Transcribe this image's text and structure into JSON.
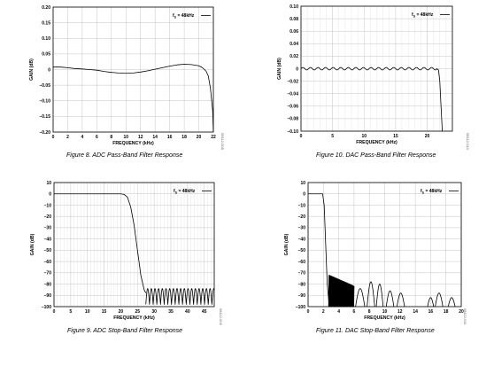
{
  "chart_data": [
    {
      "type": "line",
      "caption": "Figure 8. ADC Pass-Band Filter Response",
      "xlabel": "FREQUENCY (kHz)",
      "ylabel": "GAIN (dB)",
      "annotation": "fS = 48kHz",
      "figure_id": "08112-008",
      "xlim": [
        0,
        22
      ],
      "ylim": [
        -0.2,
        0.2
      ],
      "x_ticks": [
        "0",
        "2",
        "4",
        "6",
        "8",
        "10",
        "12",
        "14",
        "16",
        "18",
        "20",
        "22"
      ],
      "y_ticks": [
        "0.20",
        "0.15",
        "0.10",
        "0.05",
        "0",
        "–0.05",
        "–0.10",
        "–0.15",
        "–0.20"
      ],
      "grid": true,
      "series": [
        {
          "x": [
            0,
            1,
            2,
            3,
            4,
            5,
            6,
            7,
            8,
            9,
            10,
            11,
            12,
            13,
            14,
            15,
            16,
            17,
            18,
            19,
            20,
            20.5,
            21,
            21.3,
            21.6,
            21.9,
            22
          ],
          "y": [
            0.008,
            0.008,
            0.006,
            0.003,
            0.002,
            0.0,
            -0.002,
            -0.006,
            -0.009,
            -0.011,
            -0.012,
            -0.011,
            -0.008,
            -0.004,
            0.001,
            0.006,
            0.011,
            0.015,
            0.017,
            0.016,
            0.012,
            0.006,
            -0.005,
            -0.02,
            -0.06,
            -0.13,
            -0.2
          ]
        }
      ]
    },
    {
      "type": "line",
      "caption": "Figure 10. DAC Pass-Band Filter Response",
      "xlabel": "FREQUENCY (kHz)",
      "ylabel": "GAIN (dB)",
      "annotation": "fS = 48kHz",
      "figure_id": "08112-010",
      "xlim": [
        0,
        24
      ],
      "ylim": [
        -0.1,
        0.1
      ],
      "x_ticks": [
        "0",
        "5",
        "10",
        "15",
        "20"
      ],
      "x_tick_values": [
        0,
        5,
        10,
        15,
        20
      ],
      "y_ticks": [
        "0.10",
        "0.08",
        "0.06",
        "0.04",
        "0.02",
        "0",
        "–0.02",
        "–0.04",
        "–0.06",
        "–0.08",
        "–0.10"
      ],
      "grid": true,
      "ripple": {
        "amplitude_db": 0.002,
        "period_khz": 1.2,
        "until_khz": 21.5
      },
      "rolloff": {
        "x": [
          21.5,
          21.8,
          22,
          22.2,
          22.4
        ],
        "y": [
          0,
          -0.002,
          -0.02,
          -0.06,
          -0.1
        ]
      }
    },
    {
      "type": "line",
      "caption": "Figure 9. ADC Stop-Band Filter Response",
      "xlabel": "FREQUENCY (kHz)",
      "ylabel": "GAIN (dB)",
      "annotation": "fS = 48kHz",
      "figure_id": "08112-009",
      "xlim": [
        0,
        48
      ],
      "ylim": [
        -100,
        10
      ],
      "x_ticks": [
        "0",
        "5",
        "10",
        "15",
        "20",
        "25",
        "30",
        "35",
        "40",
        "45"
      ],
      "x_tick_values": [
        0,
        5,
        10,
        15,
        20,
        25,
        30,
        35,
        40,
        45
      ],
      "y_ticks": [
        "10",
        "0",
        "–10",
        "–20",
        "–30",
        "–40",
        "–50",
        "–60",
        "–70",
        "–80",
        "–90",
        "–100"
      ],
      "grid": true,
      "passband": {
        "x": [
          0,
          20,
          21,
          22,
          23,
          24,
          25,
          26,
          27,
          27.5
        ],
        "y": [
          0,
          0,
          -0.5,
          -3,
          -12,
          -28,
          -50,
          -72,
          -85,
          -88
        ]
      },
      "stopband": {
        "from_khz": 27.5,
        "to_khz": 48,
        "top_db": -84,
        "bottom_db": -98,
        "lobe_period_khz": 1.1
      }
    },
    {
      "type": "line",
      "caption": "Figure 11. DAC Stop-Band Filter Response",
      "xlabel": "FREQUENCY (kHz)",
      "ylabel": "GAIN (dB)",
      "annotation": "fS = 48kHz",
      "figure_id": "08112-011",
      "xlim": [
        0,
        20
      ],
      "ylim": [
        -100,
        10
      ],
      "x_ticks": [
        "0",
        "2",
        "4",
        "6",
        "8",
        "10",
        "12",
        "14",
        "16",
        "18",
        "20"
      ],
      "y_ticks": [
        "10",
        "0",
        "–10",
        "–20",
        "–30",
        "–40",
        "–50",
        "–60",
        "–70",
        "–80",
        "–90",
        "–100"
      ],
      "grid": true,
      "passband": {
        "x": [
          0,
          1.9,
          2.1,
          2.3,
          2.5,
          2.7
        ],
        "y": [
          0,
          0,
          -10,
          -45,
          -80,
          -95
        ]
      },
      "dense_lobes": {
        "from_khz": 2.7,
        "to_khz": 6.0,
        "top_db": -72,
        "bottom_db": -100,
        "lobe_period_khz": 0.12
      },
      "lobes": [
        {
          "from_khz": 6.2,
          "to_khz": 7.4,
          "top_db": -84
        },
        {
          "from_khz": 7.7,
          "to_khz": 8.7,
          "top_db": -78
        },
        {
          "from_khz": 8.9,
          "to_khz": 9.8,
          "top_db": -80
        },
        {
          "from_khz": 10.2,
          "to_khz": 11.2,
          "top_db": -86
        },
        {
          "from_khz": 11.6,
          "to_khz": 12.6,
          "top_db": -88
        },
        {
          "from_khz": 15.6,
          "to_khz": 16.4,
          "top_db": -92
        },
        {
          "from_khz": 16.6,
          "to_khz": 17.6,
          "top_db": -88
        },
        {
          "from_khz": 18.3,
          "to_khz": 19.2,
          "top_db": -92
        }
      ]
    }
  ]
}
